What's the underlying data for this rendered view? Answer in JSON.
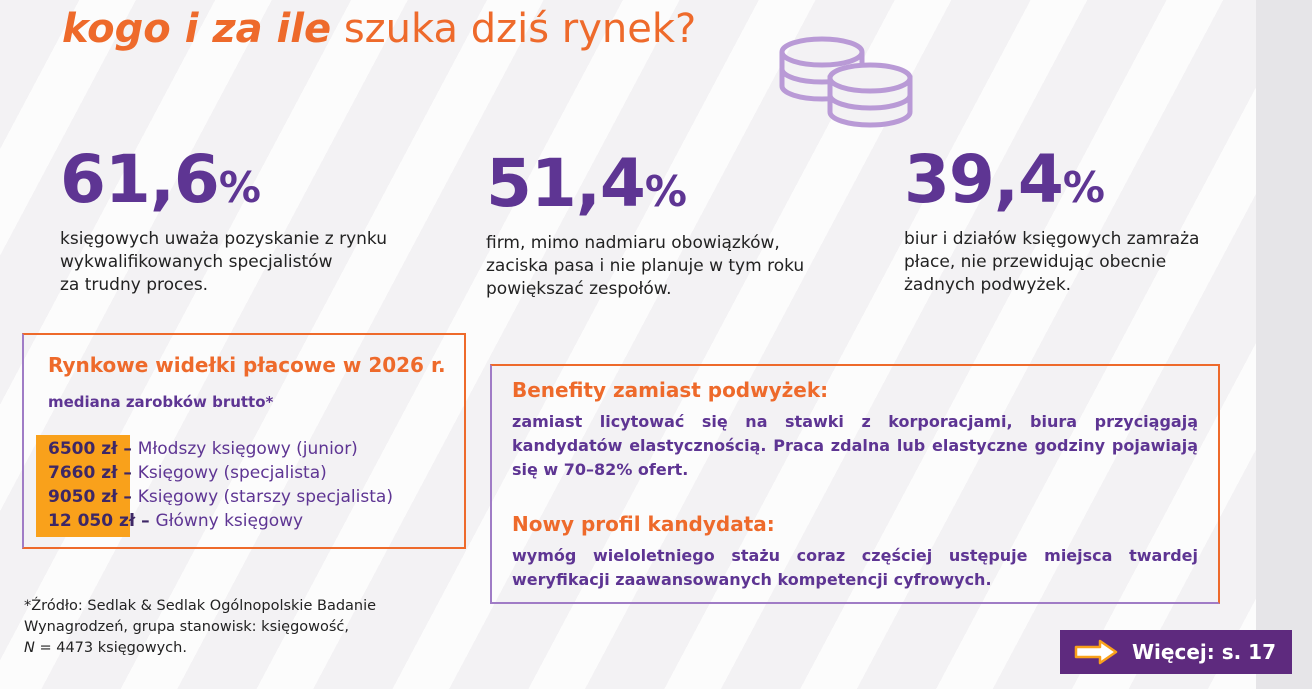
{
  "header": {
    "title_emphasis": "kogo i za ile",
    "title_rest": "szuka dziś rynek?"
  },
  "icons": {
    "decoration": "coins-icon",
    "more": "arrow-right-icon"
  },
  "colors": {
    "orange": "#ee6a2b",
    "purple": "#5e3593",
    "highlight": "#f9a11b",
    "badge": "#5e2a7e"
  },
  "stats": [
    {
      "value": "61,6",
      "unit": "%",
      "lines": [
        "księgowych uważa pozyskanie z rynku",
        "wykwalifikowanych specjalistów",
        "za trudny proces."
      ]
    },
    {
      "value": "51,4",
      "unit": "%",
      "lines": [
        "firm, mimo nadmiaru obowiązków,",
        "zaciska pasa i nie planuje w tym roku",
        "powiększać zespołów."
      ]
    },
    {
      "value": "39,4",
      "unit": "%",
      "lines": [
        "biur i działów księgowych zamraża",
        "płace, nie przewidując obecnie",
        "żadnych podwyżek."
      ]
    }
  ],
  "salary_box": {
    "heading": "Rynkowe widełki płacowe w 2026 r.",
    "subheading": "mediana zarobków brutto*",
    "rows": [
      {
        "amount": "6500 zł",
        "dash": " – ",
        "position": "Młodszy księgowy (junior)"
      },
      {
        "amount": "7660 zł",
        "dash": " – ",
        "position": "Księgowy (specjalista)"
      },
      {
        "amount": "9050 zł",
        "dash": " – ",
        "position": "Księgowy (starszy specjalista)"
      },
      {
        "amount": "12 050 zł",
        "dash": " – ",
        "position": "Główny księgowy"
      }
    ]
  },
  "info_box": {
    "benefits_heading": "Benefity zamiast podwyżek:",
    "benefits_text": "zamiast licytować się na stawki z korporacjami, biura przyciągają kandydatów elastycznością. Praca zdalna lub elastyczne godziny pojawiają się w 70–82% ofert.",
    "profile_heading": "Nowy profil kandydata:",
    "profile_text": "wymóg wieloletniego stażu coraz częściej ustępuje miejsca twardej weryfikacji zaawansowanych kompetencji cyfrowych."
  },
  "source": {
    "line1": "*Źródło: Sedlak & Sedlak Ogólnopolskie Badanie",
    "line2": "Wynagrodzeń, grupa stanowisk: księgowość,",
    "line3_italic": "N",
    "line3_rest": " = 4473  księgowych."
  },
  "more_button": {
    "label": "Więcej: s. 17"
  }
}
